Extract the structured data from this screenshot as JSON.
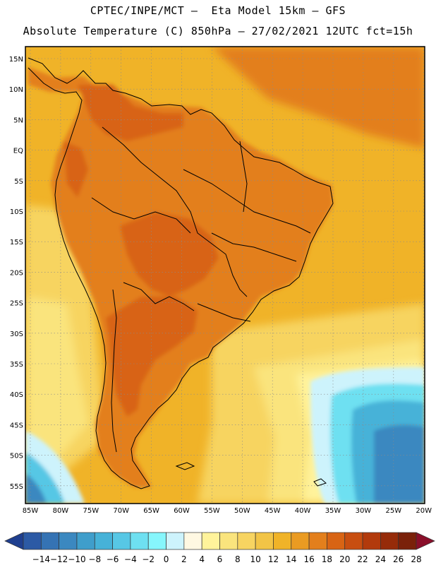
{
  "header": {
    "line1": "CPTEC/INPE/MCT –  Eta Model 15km – GFS",
    "line2": "Absolute Temperature (C) 850hPa – 27/02/2021 12UTC fct=15h"
  },
  "map": {
    "lat_labels": [
      "15N",
      "10N",
      "5N",
      "EQ",
      "5S",
      "10S",
      "15S",
      "20S",
      "25S",
      "30S",
      "35S",
      "40S",
      "45S",
      "50S",
      "55S"
    ],
    "lon_labels": [
      "85W",
      "80W",
      "75W",
      "70W",
      "65W",
      "60W",
      "55W",
      "50W",
      "45W",
      "40W",
      "35W",
      "30W",
      "25W",
      "20W"
    ]
  },
  "colorbar": {
    "labels": [
      "-14",
      "-12",
      "-10",
      "-8",
      "-6",
      "-4",
      "-2",
      "0",
      "2",
      "4",
      "6",
      "8",
      "10",
      "12",
      "14",
      "16",
      "18",
      "20",
      "22",
      "24",
      "26",
      "28"
    ],
    "colors": [
      "#1f3f8f",
      "#2c5aa5",
      "#3573b4",
      "#3b88c0",
      "#3f9ecb",
      "#46b2d8",
      "#57c7e5",
      "#6ee0f1",
      "#86f6fc",
      "#cdf3fc",
      "#fff8e2",
      "#fff39b",
      "#fae47d",
      "#f7d461",
      "#f2c446",
      "#f0b328",
      "#ea9b22",
      "#e37f1c",
      "#d86414",
      "#c84e10",
      "#b23a0c",
      "#962b09",
      "#7a210a",
      "#8a0f2a"
    ]
  },
  "palette": {
    "border": "#000000",
    "grid": "#8a8a8a",
    "land_deep_orange": "#d86414",
    "land_orange": "#e37f1c",
    "warm_ocean": "#f0b328",
    "mid_ocean": "#f7d461",
    "cool_ocean": "#fae47d",
    "cold_ocean": "#3b88c0"
  }
}
